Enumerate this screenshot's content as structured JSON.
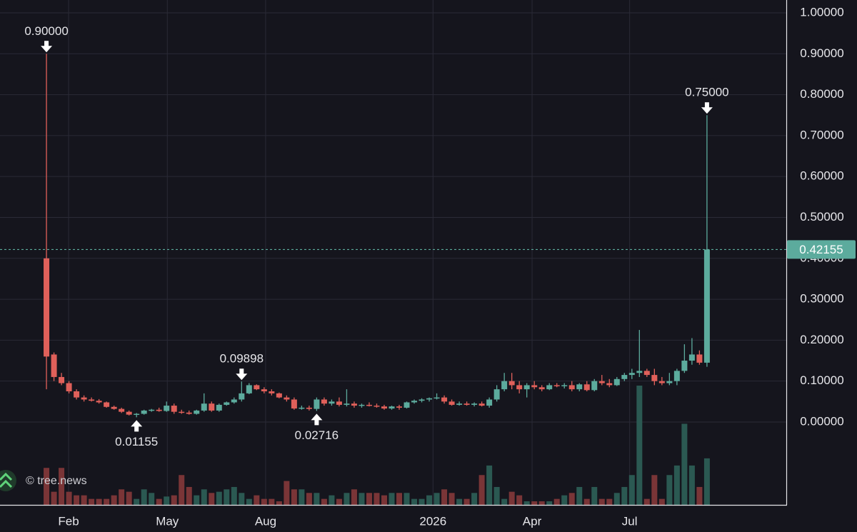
{
  "chart_data": {
    "type": "candlestick",
    "watermark": "© tree.news",
    "up_color": "#5cab9d",
    "down_color": "#e0605a",
    "up_volume_color": "#2b5952",
    "down_volume_color": "#7a3537",
    "grid": true,
    "open": [
      0.4,
      0.165,
      0.11,
      0.095,
      0.075,
      0.06,
      0.055,
      0.052,
      0.048,
      0.037,
      0.032,
      0.025,
      0.018,
      0.02,
      0.028,
      0.03,
      0.027,
      0.04,
      0.025,
      0.023,
      0.02,
      0.028,
      0.045,
      0.028,
      0.042,
      0.048,
      0.055,
      0.07,
      0.09,
      0.08,
      0.075,
      0.07,
      0.06,
      0.055,
      0.033,
      0.035,
      0.032,
      0.055,
      0.045,
      0.05,
      0.042,
      0.045,
      0.04,
      0.042,
      0.04,
      0.038,
      0.033,
      0.038,
      0.035,
      0.048,
      0.052,
      0.055,
      0.058,
      0.06,
      0.05,
      0.042,
      0.045,
      0.042,
      0.045,
      0.04,
      0.055,
      0.08,
      0.1,
      0.09,
      0.08,
      0.09,
      0.085,
      0.08,
      0.09,
      0.088,
      0.09,
      0.08,
      0.092,
      0.078,
      0.1,
      0.095,
      0.09,
      0.105,
      0.115,
      0.12,
      0.125,
      0.115,
      0.1,
      0.095,
      0.1,
      0.125,
      0.15,
      0.165,
      0.145
    ],
    "high": [
      0.9,
      0.17,
      0.12,
      0.1,
      0.08,
      0.065,
      0.06,
      0.056,
      0.05,
      0.04,
      0.035,
      0.028,
      0.022,
      0.03,
      0.032,
      0.035,
      0.05,
      0.045,
      0.03,
      0.028,
      0.03,
      0.07,
      0.05,
      0.045,
      0.05,
      0.06,
      0.09898,
      0.095,
      0.092,
      0.085,
      0.08,
      0.072,
      0.065,
      0.06,
      0.04,
      0.04,
      0.06,
      0.06,
      0.055,
      0.06,
      0.08,
      0.05,
      0.045,
      0.048,
      0.045,
      0.042,
      0.04,
      0.042,
      0.05,
      0.055,
      0.058,
      0.06,
      0.07,
      0.065,
      0.055,
      0.05,
      0.05,
      0.048,
      0.05,
      0.06,
      0.09,
      0.12,
      0.12,
      0.1,
      0.095,
      0.1,
      0.09,
      0.095,
      0.095,
      0.095,
      0.1,
      0.095,
      0.1,
      0.105,
      0.115,
      0.105,
      0.11,
      0.12,
      0.13,
      0.225,
      0.13,
      0.13,
      0.11,
      0.12,
      0.13,
      0.19,
      0.205,
      0.175,
      0.75
    ],
    "low": [
      0.08,
      0.1,
      0.09,
      0.07,
      0.055,
      0.05,
      0.05,
      0.045,
      0.035,
      0.03,
      0.022,
      0.016,
      0.01155,
      0.018,
      0.025,
      0.025,
      0.025,
      0.02,
      0.02,
      0.018,
      0.018,
      0.025,
      0.025,
      0.025,
      0.04,
      0.045,
      0.05,
      0.068,
      0.078,
      0.07,
      0.065,
      0.058,
      0.05,
      0.03,
      0.03,
      0.028,
      0.02716,
      0.04,
      0.04,
      0.038,
      0.038,
      0.035,
      0.035,
      0.038,
      0.035,
      0.03,
      0.03,
      0.03,
      0.033,
      0.045,
      0.048,
      0.05,
      0.055,
      0.045,
      0.04,
      0.04,
      0.04,
      0.038,
      0.038,
      0.035,
      0.05,
      0.075,
      0.08,
      0.07,
      0.06,
      0.08,
      0.075,
      0.078,
      0.085,
      0.082,
      0.075,
      0.075,
      0.075,
      0.075,
      0.09,
      0.085,
      0.088,
      0.1,
      0.105,
      0.11,
      0.11,
      0.09,
      0.09,
      0.09,
      0.09,
      0.12,
      0.14,
      0.14,
      0.135
    ],
    "close": [
      0.16,
      0.11,
      0.095,
      0.075,
      0.06,
      0.055,
      0.052,
      0.048,
      0.037,
      0.032,
      0.025,
      0.018,
      0.02,
      0.028,
      0.03,
      0.027,
      0.04,
      0.025,
      0.023,
      0.02,
      0.028,
      0.045,
      0.028,
      0.042,
      0.048,
      0.055,
      0.07,
      0.09,
      0.08,
      0.075,
      0.07,
      0.06,
      0.055,
      0.033,
      0.035,
      0.032,
      0.055,
      0.045,
      0.05,
      0.042,
      0.045,
      0.04,
      0.042,
      0.04,
      0.038,
      0.033,
      0.038,
      0.035,
      0.048,
      0.052,
      0.055,
      0.058,
      0.06,
      0.05,
      0.042,
      0.045,
      0.042,
      0.045,
      0.04,
      0.055,
      0.08,
      0.1,
      0.09,
      0.08,
      0.09,
      0.085,
      0.08,
      0.09,
      0.088,
      0.09,
      0.08,
      0.092,
      0.078,
      0.1,
      0.095,
      0.09,
      0.105,
      0.115,
      0.12,
      0.125,
      0.115,
      0.1,
      0.095,
      0.1,
      0.125,
      0.15,
      0.165,
      0.145,
      0.42155
    ],
    "volume": [
      31,
      11,
      31,
      11,
      8,
      8,
      5,
      5,
      5,
      8,
      13,
      11,
      5,
      13,
      10,
      5,
      7,
      8,
      25,
      15,
      8,
      13,
      10,
      11,
      13,
      15,
      10,
      5,
      8,
      5,
      5,
      3,
      20,
      13,
      13,
      10,
      10,
      5,
      8,
      5,
      10,
      13,
      10,
      10,
      10,
      8,
      10,
      10,
      10,
      5,
      5,
      8,
      10,
      13,
      10,
      5,
      5,
      10,
      25,
      33,
      15,
      5,
      11,
      8,
      3,
      3,
      3,
      3,
      5,
      8,
      10,
      15,
      5,
      15,
      5,
      5,
      10,
      15,
      25,
      100,
      5,
      25,
      5,
      25,
      33,
      68,
      33,
      15,
      39
    ],
    "volume_max": 100,
    "xlim": [
      -6.19,
      98.57
    ],
    "xticks": [
      {
        "value": 2.95,
        "label": "Feb"
      },
      {
        "value": 16.1,
        "label": "May"
      },
      {
        "value": 29.2,
        "label": "Aug"
      },
      {
        "value": 51.5,
        "label": "2026"
      },
      {
        "value": 64.7,
        "label": "Apr"
      },
      {
        "value": 77.7,
        "label": "Jul"
      }
    ],
    "ylim": [
      -0.2025,
      1.0314
    ],
    "yticks": [
      {
        "value": 0,
        "label": "0.00000"
      },
      {
        "value": 0.1,
        "label": "0.10000"
      },
      {
        "value": 0.2,
        "label": "0.20000"
      },
      {
        "value": 0.3,
        "label": "0.30000"
      },
      {
        "value": 0.4,
        "label": "0.40000"
      },
      {
        "value": 0.5,
        "label": "0.50000"
      },
      {
        "value": 0.6,
        "label": "0.60000"
      },
      {
        "value": 0.7,
        "label": "0.70000"
      },
      {
        "value": 0.8,
        "label": "0.80000"
      },
      {
        "value": 0.9,
        "label": "0.90000"
      },
      {
        "value": 1.0,
        "label": "1.00000"
      }
    ],
    "last_price": {
      "value": 0.42155,
      "label": "0.42155"
    },
    "annotations": [
      {
        "index": 0,
        "value": 0.9,
        "label": "0.90000",
        "position": "above"
      },
      {
        "index": 12,
        "value": 0.01155,
        "label": "0.01155",
        "position": "below"
      },
      {
        "index": 26,
        "value": 0.09898,
        "label": "0.09898",
        "position": "above"
      },
      {
        "index": 36,
        "value": 0.02716,
        "label": "0.02716",
        "position": "below"
      },
      {
        "index": 88,
        "value": 0.75,
        "label": "0.75000",
        "position": "above"
      }
    ]
  }
}
